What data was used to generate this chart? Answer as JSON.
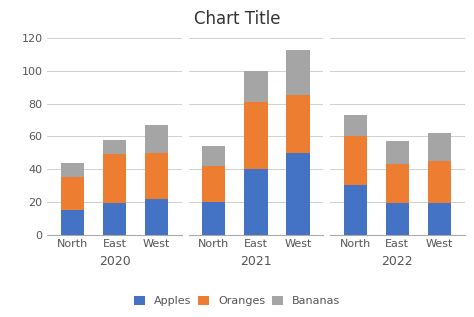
{
  "title": "Chart Title",
  "years": [
    "2020",
    "2021",
    "2022"
  ],
  "regions": [
    "North",
    "East",
    "West"
  ],
  "data": {
    "Apples": {
      "2020": [
        15,
        19,
        22
      ],
      "2021": [
        20,
        40,
        50
      ],
      "2022": [
        30,
        19,
        19
      ]
    },
    "Oranges": {
      "2020": [
        20,
        30,
        28
      ],
      "2021": [
        22,
        41,
        35
      ],
      "2022": [
        30,
        24,
        26
      ]
    },
    "Bananas": {
      "2020": [
        9,
        9,
        17
      ],
      "2021": [
        12,
        19,
        28
      ],
      "2022": [
        13,
        14,
        17
      ]
    }
  },
  "colors": {
    "Apples": "#4472C4",
    "Oranges": "#ED7D31",
    "Bananas": "#A5A5A5"
  },
  "ylim": [
    0,
    120
  ],
  "yticks": [
    0,
    20,
    40,
    60,
    80,
    100,
    120
  ],
  "bar_width": 0.55,
  "title_fontsize": 12,
  "legend_fontsize": 8,
  "tick_fontsize": 8,
  "year_label_fontsize": 9
}
